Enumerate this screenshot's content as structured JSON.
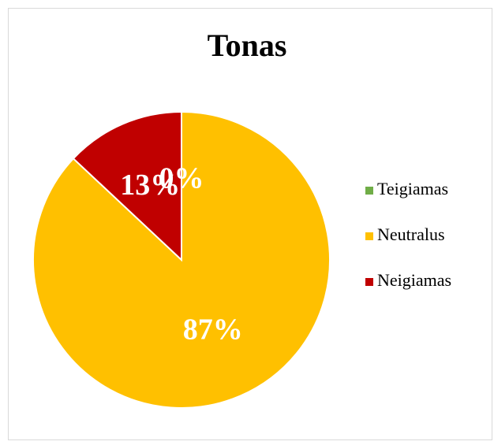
{
  "chart_data": {
    "type": "pie",
    "title": "Tonas",
    "categories": [
      "Teigiamas",
      "Neutralus",
      "Neigiamas"
    ],
    "values": [
      0,
      87,
      13
    ],
    "value_labels": [
      "0%",
      "87%",
      "13%"
    ],
    "colors": [
      "#70ad47",
      "#ffc000",
      "#c00000"
    ],
    "legend": "right"
  }
}
